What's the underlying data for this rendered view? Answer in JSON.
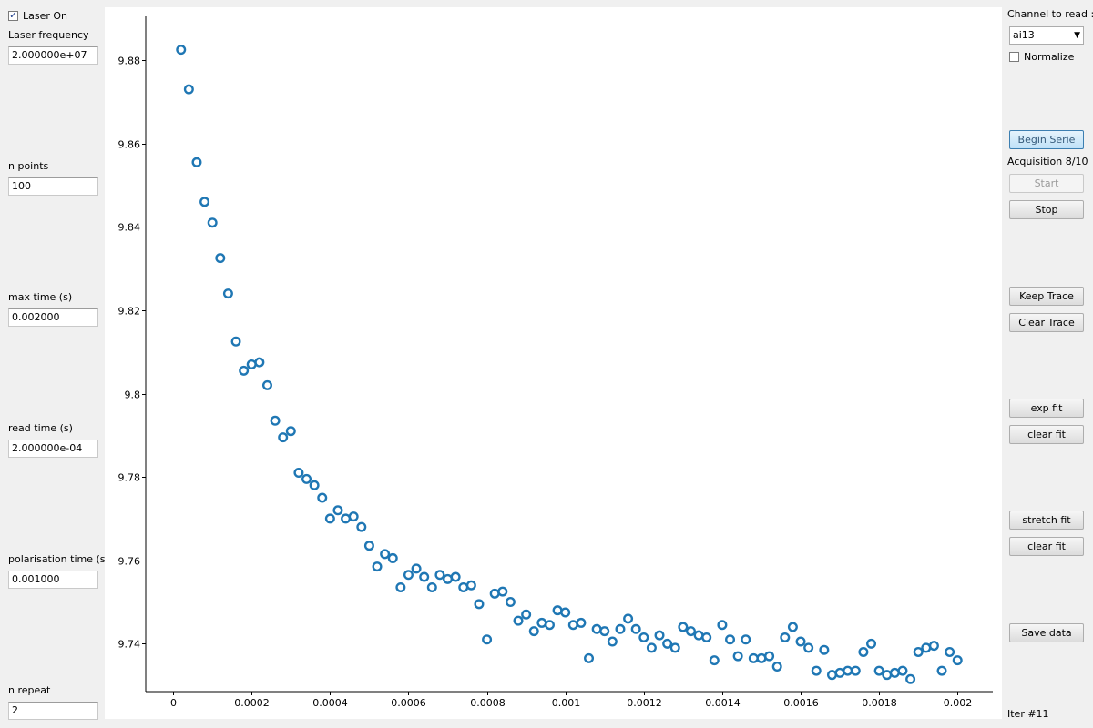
{
  "left_panel": {
    "laser_on_label": "Laser On",
    "laser_on_checked": true,
    "laser_frequency_label": "Laser frequency",
    "laser_frequency_value": "2.000000e+07",
    "n_points_label": "n points",
    "n_points_value": "100",
    "max_time_label": "max time (s)",
    "max_time_value": "0.002000",
    "read_time_label": "read time (s)",
    "read_time_value": "2.000000e-04",
    "polarisation_time_label": "polarisation time (s)",
    "polarisation_time_value": "0.001000",
    "n_repeat_label": "n repeat",
    "n_repeat_value": "2"
  },
  "right_panel": {
    "channel_label": "Channel to read :",
    "channel_value": "ai13",
    "normalize_label": "Normalize",
    "normalize_checked": false,
    "begin_serie_label": "Begin Serie",
    "acquisition_status": "Acquisition 8/10",
    "start_label": "Start",
    "stop_label": "Stop",
    "keep_trace_label": "Keep Trace",
    "clear_trace_label": "Clear Trace",
    "exp_fit_label": "exp fit",
    "clear_exp_fit_label": "clear fit",
    "stretch_fit_label": "stretch fit",
    "clear_stretch_fit_label": "clear fit",
    "save_data_label": "Save data",
    "iter_label": "Iter #11"
  },
  "chart_data": {
    "type": "scatter",
    "marker": "hollow-circle",
    "color": "#1f77b4",
    "xlim": [
      -7e-05,
      0.00209
    ],
    "ylim": [
      9.7285,
      9.8905
    ],
    "x_ticks": [
      0,
      0.0002,
      0.0004,
      0.0006,
      0.0008,
      0.001,
      0.0012,
      0.0014,
      0.0016,
      0.0018,
      0.002
    ],
    "x_tick_labels": [
      "0",
      "0.0002",
      "0.0004",
      "0.0006",
      "0.0008",
      "0.001",
      "0.0012",
      "0.0014",
      "0.0016",
      "0.0018",
      "0.002"
    ],
    "y_ticks": [
      9.74,
      9.76,
      9.78,
      9.8,
      9.82,
      9.84,
      9.86,
      9.88
    ],
    "y_tick_labels": [
      "9.74",
      "9.76",
      "9.78",
      "9.8",
      "9.82",
      "9.84",
      "9.86",
      "9.88"
    ],
    "x": [
      2e-05,
      4e-05,
      6e-05,
      8e-05,
      0.0001,
      0.00012,
      0.00014,
      0.00016,
      0.00018,
      0.0002,
      0.00022,
      0.00024,
      0.00026,
      0.00028,
      0.0003,
      0.00032,
      0.00034,
      0.00036,
      0.00038,
      0.0004,
      0.00042,
      0.00044,
      0.00046,
      0.00048,
      0.0005,
      0.00052,
      0.00054,
      0.00056,
      0.00058,
      0.0006,
      0.00062,
      0.00064,
      0.00066,
      0.00068,
      0.0007,
      0.00072,
      0.00074,
      0.00076,
      0.00078,
      0.0008,
      0.00082,
      0.00084,
      0.00086,
      0.00088,
      0.0009,
      0.00092,
      0.00094,
      0.00096,
      0.00098,
      0.001,
      0.00102,
      0.00104,
      0.00106,
      0.00108,
      0.0011,
      0.00112,
      0.00114,
      0.00116,
      0.00118,
      0.0012,
      0.00122,
      0.00124,
      0.00126,
      0.00128,
      0.0013,
      0.00132,
      0.00134,
      0.00136,
      0.00138,
      0.0014,
      0.00142,
      0.00144,
      0.00146,
      0.00148,
      0.0015,
      0.00152,
      0.00154,
      0.00156,
      0.00158,
      0.0016,
      0.00162,
      0.00164,
      0.00166,
      0.00168,
      0.0017,
      0.00172,
      0.00174,
      0.00176,
      0.00178,
      0.0018,
      0.00182,
      0.00184,
      0.00186,
      0.00188,
      0.0019,
      0.00192,
      0.00194,
      0.00196,
      0.00198,
      0.002
    ],
    "y": [
      9.8825,
      9.873,
      9.8555,
      9.846,
      9.841,
      9.8325,
      9.824,
      9.8125,
      9.8055,
      9.807,
      9.8075,
      9.802,
      9.7935,
      9.7895,
      9.791,
      9.781,
      9.7795,
      9.778,
      9.775,
      9.77,
      9.772,
      9.77,
      9.7705,
      9.768,
      9.7635,
      9.7585,
      9.7615,
      9.7605,
      9.7535,
      9.7565,
      9.758,
      9.756,
      9.7535,
      9.7565,
      9.7555,
      9.756,
      9.7535,
      9.754,
      9.7495,
      9.741,
      9.752,
      9.7525,
      9.75,
      9.7455,
      9.747,
      9.743,
      9.745,
      9.7445,
      9.748,
      9.7475,
      9.7445,
      9.745,
      9.7365,
      9.7435,
      9.743,
      9.7405,
      9.7435,
      9.746,
      9.7435,
      9.7415,
      9.739,
      9.742,
      9.74,
      9.739,
      9.744,
      9.743,
      9.742,
      9.7415,
      9.736,
      9.7445,
      9.741,
      9.737,
      9.741,
      9.7365,
      9.7365,
      9.737,
      9.7345,
      9.7415,
      9.744,
      9.7405,
      9.739,
      9.7335,
      9.7385,
      9.7325,
      9.733,
      9.7335,
      9.7335,
      9.738,
      9.74,
      9.7335,
      9.7325,
      9.733,
      9.7335,
      9.7315,
      9.738,
      9.739,
      9.7395,
      9.7335,
      9.738,
      9.736
    ]
  }
}
